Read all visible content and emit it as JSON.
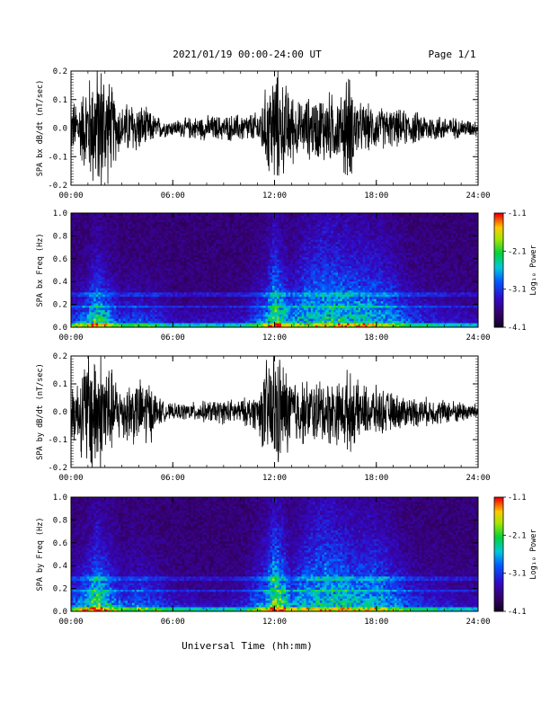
{
  "header": {
    "title": "2021/01/19  00:00-24:00 UT",
    "page": "Page 1/1"
  },
  "footer": {
    "xlabel": "Universal Time (hh:mm)"
  },
  "chart_data": [
    {
      "type": "line",
      "ylabel": "SPA bx dB/dt (nT/sec)",
      "xlim": [
        0,
        24
      ],
      "ylim": [
        -0.2,
        0.2
      ],
      "x_ticks": [
        "00:00",
        "06:00",
        "12:00",
        "18:00",
        "24:00"
      ],
      "y_ticks": [
        "-0.2",
        "-0.1",
        "0.0",
        "0.1",
        "0.2"
      ],
      "envelope": {
        "hours": [
          0,
          0.5,
          1,
          1.5,
          1.75,
          2,
          2.5,
          3,
          3.5,
          4,
          4.5,
          5,
          5.5,
          6,
          7,
          8,
          9,
          10,
          11,
          11.5,
          12,
          12.5,
          13,
          13.5,
          14,
          14.5,
          15,
          16,
          16.2,
          17,
          18,
          19,
          20,
          21,
          22,
          23,
          24
        ],
        "amplitude": [
          0.08,
          0.1,
          0.16,
          0.22,
          0.22,
          0.2,
          0.12,
          0.07,
          0.09,
          0.08,
          0.06,
          0.04,
          0.03,
          0.025,
          0.035,
          0.04,
          0.04,
          0.045,
          0.05,
          0.13,
          0.2,
          0.15,
          0.12,
          0.08,
          0.1,
          0.1,
          0.12,
          0.1,
          0.2,
          0.08,
          0.07,
          0.06,
          0.055,
          0.045,
          0.04,
          0.03,
          0.025
        ]
      }
    },
    {
      "type": "heatmap",
      "ylabel": "SPA bx Freq (Hz)",
      "xlim": [
        0,
        24
      ],
      "ylim": [
        0,
        1.0
      ],
      "x_ticks": [
        "00:00",
        "06:00",
        "12:00",
        "18:00",
        "24:00"
      ],
      "y_ticks": [
        "0.0",
        "0.2",
        "0.4",
        "0.6",
        "0.8",
        "1.0"
      ],
      "colorbar": {
        "label": "Log₁₀ Power",
        "range": [
          -4.1,
          -1.1
        ],
        "ticks": [
          "-1.1",
          "-2.1",
          "-3.1",
          "-4.1"
        ]
      },
      "activity": {
        "hours": [
          0,
          1,
          1.5,
          2,
          3,
          4,
          5,
          6,
          8,
          10,
          11.5,
          12,
          12.5,
          13,
          14,
          15,
          16,
          17,
          18,
          19,
          20,
          22,
          24
        ],
        "level": [
          0.35,
          0.5,
          0.7,
          0.55,
          0.3,
          0.35,
          0.3,
          0.2,
          0.2,
          0.2,
          0.45,
          0.75,
          0.6,
          0.45,
          0.5,
          0.55,
          0.55,
          0.55,
          0.5,
          0.45,
          0.3,
          0.2,
          0.15
        ],
        "extent_hz": [
          0.15,
          0.25,
          0.35,
          0.3,
          0.2,
          0.2,
          0.2,
          0.12,
          0.12,
          0.15,
          0.3,
          0.45,
          0.35,
          0.3,
          0.5,
          0.55,
          0.5,
          0.45,
          0.45,
          0.35,
          0.25,
          0.2,
          0.15
        ]
      },
      "band_hz": [
        0.18,
        0.28,
        0.3
      ]
    },
    {
      "type": "line",
      "ylabel": "SPA by dB/dt (nT/sec)",
      "xlim": [
        0,
        24
      ],
      "ylim": [
        -0.2,
        0.2
      ],
      "x_ticks": [
        "00:00",
        "06:00",
        "12:00",
        "18:00",
        "24:00"
      ],
      "y_ticks": [
        "-0.2",
        "-0.1",
        "0.0",
        "0.1",
        "0.2"
      ],
      "envelope": {
        "hours": [
          0,
          0.5,
          1,
          1.5,
          2,
          2.5,
          3,
          3.5,
          4,
          4.5,
          5,
          5.5,
          6,
          7,
          8,
          9,
          10,
          11,
          11.5,
          12,
          12.5,
          13,
          14,
          15,
          16,
          16.2,
          17,
          18,
          19,
          20,
          21,
          22,
          23,
          24
        ],
        "amplitude": [
          0.09,
          0.12,
          0.22,
          0.22,
          0.2,
          0.12,
          0.09,
          0.11,
          0.1,
          0.12,
          0.06,
          0.03,
          0.025,
          0.03,
          0.035,
          0.04,
          0.04,
          0.06,
          0.16,
          0.22,
          0.16,
          0.12,
          0.1,
          0.11,
          0.1,
          0.14,
          0.09,
          0.08,
          0.06,
          0.05,
          0.045,
          0.04,
          0.035,
          0.025
        ]
      }
    },
    {
      "type": "heatmap",
      "ylabel": "SPA by Freq (Hz)",
      "xlim": [
        0,
        24
      ],
      "ylim": [
        0,
        1.0
      ],
      "x_ticks": [
        "00:00",
        "06:00",
        "12:00",
        "18:00",
        "24:00"
      ],
      "y_ticks": [
        "0.0",
        "0.2",
        "0.4",
        "0.6",
        "0.8",
        "1.0"
      ],
      "colorbar": {
        "label": "Log₁₀ Power",
        "range": [
          -4.1,
          -1.1
        ],
        "ticks": [
          "-1.1",
          "-2.1",
          "-3.1",
          "-4.1"
        ]
      },
      "activity": {
        "hours": [
          0,
          1,
          1.5,
          2,
          3,
          4,
          5,
          6,
          8,
          10,
          11.5,
          12,
          12.5,
          13,
          14,
          15,
          16,
          17,
          18,
          19,
          20,
          22,
          24
        ],
        "level": [
          0.4,
          0.55,
          0.75,
          0.6,
          0.35,
          0.4,
          0.35,
          0.25,
          0.2,
          0.22,
          0.5,
          0.8,
          0.65,
          0.45,
          0.5,
          0.55,
          0.55,
          0.5,
          0.5,
          0.45,
          0.3,
          0.2,
          0.15
        ],
        "extent_hz": [
          0.2,
          0.3,
          0.4,
          0.35,
          0.25,
          0.25,
          0.22,
          0.15,
          0.12,
          0.15,
          0.35,
          0.5,
          0.4,
          0.3,
          0.5,
          0.6,
          0.5,
          0.45,
          0.45,
          0.35,
          0.25,
          0.2,
          0.15
        ]
      },
      "band_hz": [
        0.18,
        0.28,
        0.3
      ]
    }
  ]
}
